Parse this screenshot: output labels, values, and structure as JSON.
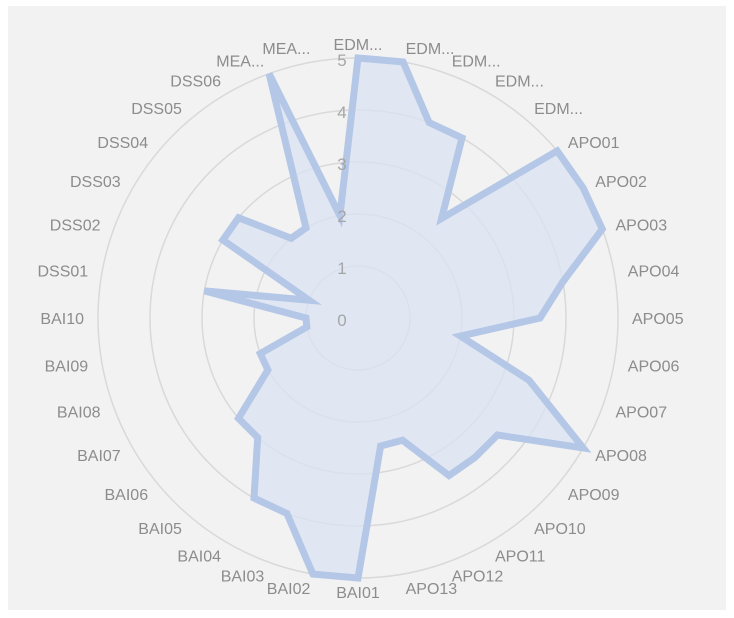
{
  "chart_data": {
    "type": "radar",
    "title": "",
    "categories": [
      "EDM...",
      "EDM...",
      "EDM...",
      "EDM...",
      "EDM...",
      "APO01",
      "APO02",
      "APO03",
      "APO04",
      "APO05",
      "APO06",
      "APO07",
      "APO08",
      "APO09",
      "APO10",
      "APO11",
      "APO12",
      "APO13",
      "BAI01",
      "BAI02",
      "BAI03",
      "BAI04",
      "BAI05",
      "BAI06",
      "BAI07",
      "BAI08",
      "BAI09",
      "BAI10",
      "DSS01",
      "DSS02",
      "DSS03",
      "DSS04",
      "DSS05",
      "DSS06",
      "MEA...",
      "MEA..."
    ],
    "series": [
      {
        "values": [
          5,
          5,
          4,
          4,
          2.5,
          5,
          5,
          5,
          4,
          3.5,
          2,
          3.5,
          5,
          3.5,
          3.5,
          3.5,
          2.5,
          2.5,
          5,
          5,
          4,
          4,
          3,
          3,
          2,
          2,
          1,
          1,
          3,
          1,
          3,
          3,
          2,
          2,
          5,
          2
        ],
        "color": "#b4c7e7",
        "fill": "#dae3f3"
      }
    ],
    "r_ticks": [
      0,
      1,
      2,
      3,
      4,
      5
    ],
    "rlim": [
      0,
      5
    ],
    "grid": true,
    "legend": "none"
  }
}
